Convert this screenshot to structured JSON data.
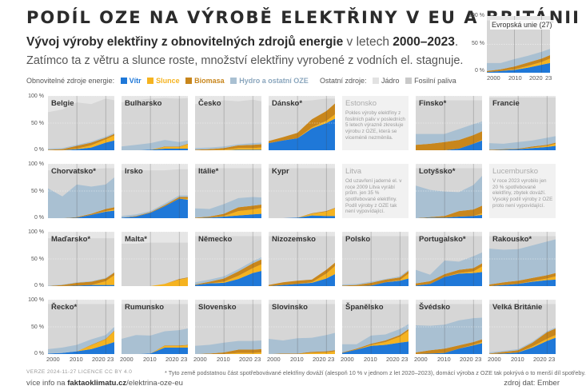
{
  "header": {
    "title": "PODÍL OZE NA VÝROBĚ ELEKTŘINY V EU A BRITÁNII",
    "subtitle_bold": "Vývoj výroby elektřiny z obnovitelných zdrojů energie",
    "subtitle_mid": " v letech ",
    "subtitle_years": "2000–2023",
    "subtitle_end": ".",
    "subtitle2": "Zatímco ta z větru a slunce roste, množství elektřiny vyrobené z vodních el. stagnuje."
  },
  "legend": {
    "renewables_label": "Obnovitelné zdroje energie:",
    "other_label": "Ostatní zdroje:",
    "items": [
      "Vítr",
      "Slunce",
      "Biomasa",
      "Hydro a ostatní OZE",
      "Jádro",
      "Fosilní paliva"
    ]
  },
  "colors": {
    "wind": "#1f78d8",
    "solar": "#f5b320",
    "biomass": "#c8861c",
    "hydro": "#a9c0d2",
    "nuclear": "#e2e2e2",
    "fossil": "#c9c9c9",
    "panel_bg": "#e6e6e6",
    "missing_bg": "#f1f1f1"
  },
  "axis": {
    "y_ticks": [
      "100 %",
      "50 %",
      "0 %"
    ],
    "x_ticks": [
      "2000",
      "2010",
      "2020",
      "23"
    ]
  },
  "eu": {
    "name": "Evropská unie (27)"
  },
  "notes": {
    "estonia": "Pokles výroby elektřiny z fosilních paliv v posledních 5 letech výrazně zkresluje výrobu z OZE, která se víceméně nezměnila.",
    "lithuania": "Od uzavření jaderné el. v roce 2009 Litva vyrábí prům. jen 35 % spotřebované elektřiny. Podíl výroby z OZE tak není vypovídající.",
    "luxembourg": "V roce 2023 vyrobilo jen 20 % spotřebované elektřiny, zbytek dováží. Vysoký podíl výroby z OZE proto není vypovídající."
  },
  "footer": {
    "footnote": "* Tyto země podstatnou část spotřebovávané elektřiny dováží (alespoň 10 % v jednom z let 2020–2023), domácí výroba z OZE tak pokrývá o to menší díl spotřeby.",
    "version": "VERZE 2024-11-27   LICENCE CC BY 4.0",
    "more_prefix": "více info na ",
    "more_domain": "faktaoklimatu.cz",
    "more_path": "/elektrina-oze-eu",
    "source": "zdroj dat: Ember"
  },
  "chart_data": {
    "type": "area",
    "stacked": true,
    "x": [
      2000,
      2005,
      2010,
      2015,
      2020,
      2023
    ],
    "ylim": [
      0,
      100
    ],
    "yunit": "%",
    "series_order": [
      "Vítr",
      "Slunce",
      "Biomasa",
      "Hydro a ostatní OZE"
    ],
    "countries": [
      {
        "name": "Belgie",
        "wind": [
          0,
          0,
          2,
          5,
          14,
          18
        ],
        "solar": [
          0,
          0,
          1,
          4,
          6,
          9
        ],
        "biomass": [
          1,
          2,
          5,
          5,
          3,
          3
        ],
        "hydro": [
          2,
          2,
          2,
          2,
          2,
          2
        ],
        "total": [
          70,
          75,
          88,
          85,
          95,
          92
        ]
      },
      {
        "name": "Bulharsko",
        "wind": [
          0,
          0,
          1,
          3,
          3,
          3
        ],
        "solar": [
          0,
          0,
          0,
          3,
          3,
          8
        ],
        "biomass": [
          0,
          0,
          0,
          1,
          1,
          1
        ],
        "hydro": [
          7,
          10,
          12,
          12,
          8,
          6
        ],
        "total": [
          88,
          92,
          95,
          96,
          95,
          96
        ]
      },
      {
        "name": "Česko",
        "wind": [
          0,
          0,
          0,
          1,
          1,
          1
        ],
        "solar": [
          0,
          0,
          1,
          3,
          3,
          4
        ],
        "biomass": [
          1,
          2,
          3,
          5,
          6,
          6
        ],
        "hydro": [
          3,
          3,
          3,
          2,
          3,
          3
        ],
        "total": [
          85,
          88,
          92,
          90,
          93,
          90
        ]
      },
      {
        "name": "Dánsko*",
        "wind": [
          13,
          18,
          22,
          40,
          50,
          58
        ],
        "solar": [
          0,
          0,
          0,
          2,
          4,
          8
        ],
        "biomass": [
          4,
          6,
          10,
          15,
          18,
          20
        ],
        "hydro": [
          0,
          0,
          0,
          0,
          0,
          0
        ],
        "total": [
          82,
          85,
          90,
          92,
          95,
          95
        ]
      },
      {
        "name": "Estonsko",
        "missing": true,
        "note": "estonia"
      },
      {
        "name": "Finsko*",
        "wind": [
          0,
          0,
          0,
          3,
          12,
          18
        ],
        "solar": [
          0,
          0,
          0,
          0,
          0,
          1
        ],
        "biomass": [
          10,
          12,
          15,
          16,
          16,
          16
        ],
        "hydro": [
          20,
          18,
          15,
          20,
          20,
          18
        ],
        "total": [
          92,
          92,
          92,
          92,
          92,
          92
        ]
      },
      {
        "name": "Francie",
        "wind": [
          0,
          1,
          2,
          4,
          6,
          8
        ],
        "solar": [
          0,
          0,
          0,
          1,
          2,
          4
        ],
        "biomass": [
          1,
          1,
          1,
          2,
          2,
          2
        ],
        "hydro": [
          12,
          10,
          12,
          11,
          13,
          12
        ],
        "total": [
          97,
          97,
          97,
          97,
          97,
          97
        ]
      },
      {
        "name": "Chorvatsko*",
        "wind": [
          0,
          0,
          1,
          6,
          12,
          14
        ],
        "solar": [
          0,
          0,
          0,
          0,
          1,
          2
        ],
        "biomass": [
          0,
          0,
          1,
          2,
          4,
          4
        ],
        "hydro": [
          55,
          40,
          60,
          50,
          45,
          55
        ],
        "total": [
          88,
          88,
          92,
          90,
          92,
          92
        ]
      },
      {
        "name": "Irsko",
        "wind": [
          1,
          3,
          10,
          22,
          36,
          34
        ],
        "solar": [
          0,
          0,
          0,
          0,
          0,
          2
        ],
        "biomass": [
          0,
          1,
          1,
          2,
          3,
          3
        ],
        "hydro": [
          3,
          3,
          2,
          3,
          3,
          3
        ],
        "total": [
          88,
          88,
          88,
          88,
          90,
          90
        ]
      },
      {
        "name": "Itálie*",
        "wind": [
          0,
          1,
          3,
          5,
          7,
          8
        ],
        "solar": [
          0,
          0,
          1,
          8,
          9,
          11
        ],
        "biomass": [
          1,
          2,
          4,
          7,
          7,
          6
        ],
        "hydro": [
          17,
          14,
          18,
          17,
          16,
          13
        ],
        "total": [
          92,
          92,
          92,
          92,
          92,
          92
        ]
      },
      {
        "name": "Kypr",
        "wind": [
          0,
          0,
          1,
          5,
          4,
          4
        ],
        "solar": [
          0,
          0,
          0,
          3,
          8,
          14
        ],
        "biomass": [
          0,
          0,
          0,
          1,
          1,
          1
        ],
        "hydro": [
          0,
          0,
          0,
          0,
          0,
          0
        ],
        "total": [
          92,
          92,
          92,
          92,
          92,
          92
        ]
      },
      {
        "name": "Litva",
        "missing": true,
        "note": "lithuania"
      },
      {
        "name": "Lotyšsko*",
        "wind": [
          0,
          1,
          1,
          3,
          4,
          6
        ],
        "solar": [
          0,
          0,
          0,
          0,
          0,
          3
        ],
        "biomass": [
          0,
          1,
          3,
          10,
          12,
          14
        ],
        "hydro": [
          60,
          50,
          45,
          35,
          45,
          55
        ],
        "total": [
          92,
          92,
          92,
          92,
          92,
          92
        ]
      },
      {
        "name": "Lucembursko",
        "missing": true,
        "note": "luxembourg"
      },
      {
        "name": "Maďarsko*",
        "wind": [
          0,
          0,
          1,
          2,
          2,
          2
        ],
        "solar": [
          0,
          0,
          0,
          0,
          7,
          18
        ],
        "biomass": [
          0,
          2,
          5,
          6,
          5,
          5
        ],
        "hydro": [
          1,
          1,
          1,
          1,
          1,
          1
        ],
        "total": [
          88,
          88,
          88,
          88,
          88,
          88
        ]
      },
      {
        "name": "Malta*",
        "wind": [
          0,
          0,
          0,
          0,
          0,
          0
        ],
        "solar": [
          0,
          0,
          0,
          4,
          12,
          15
        ],
        "biomass": [
          0,
          0,
          0,
          0,
          1,
          1
        ],
        "hydro": [
          0,
          0,
          0,
          0,
          0,
          0
        ],
        "total": [
          78,
          78,
          80,
          80,
          80,
          80
        ]
      },
      {
        "name": "Německo",
        "wind": [
          2,
          5,
          6,
          13,
          24,
          28
        ],
        "solar": [
          0,
          0,
          2,
          6,
          9,
          12
        ],
        "biomass": [
          1,
          3,
          6,
          8,
          9,
          9
        ],
        "hydro": [
          4,
          4,
          4,
          4,
          4,
          4
        ],
        "total": [
          92,
          92,
          92,
          92,
          92,
          92
        ]
      },
      {
        "name": "Nizozemsko",
        "wind": [
          0,
          2,
          4,
          6,
          14,
          22
        ],
        "solar": [
          0,
          0,
          0,
          1,
          9,
          15
        ],
        "biomass": [
          2,
          5,
          6,
          5,
          7,
          6
        ],
        "hydro": [
          0,
          0,
          0,
          0,
          0,
          0
        ],
        "total": [
          92,
          92,
          92,
          92,
          92,
          92
        ]
      },
      {
        "name": "Polsko",
        "wind": [
          0,
          0,
          1,
          7,
          10,
          14
        ],
        "solar": [
          0,
          0,
          0,
          0,
          1,
          9
        ],
        "biomass": [
          1,
          2,
          5,
          5,
          5,
          5
        ],
        "hydro": [
          2,
          2,
          2,
          1,
          2,
          2
        ],
        "total": [
          92,
          92,
          92,
          92,
          92,
          92
        ]
      },
      {
        "name": "Portugalsko*",
        "wind": [
          1,
          4,
          17,
          23,
          24,
          26
        ],
        "solar": [
          0,
          0,
          0,
          1,
          3,
          10
        ],
        "biomass": [
          4,
          5,
          5,
          6,
          6,
          6
        ],
        "hydro": [
          25,
          12,
          25,
          15,
          22,
          20
        ],
        "total": [
          92,
          92,
          92,
          92,
          92,
          92
        ]
      },
      {
        "name": "Rakousko*",
        "wind": [
          0,
          2,
          4,
          8,
          11,
          12
        ],
        "solar": [
          0,
          0,
          0,
          1,
          3,
          6
        ],
        "biomass": [
          3,
          5,
          6,
          6,
          6,
          6
        ],
        "hydro": [
          66,
          60,
          58,
          60,
          62,
          62
        ],
        "total": [
          92,
          92,
          92,
          92,
          92,
          92
        ]
      },
      {
        "name": "Řecko*",
        "wind": [
          1,
          2,
          5,
          9,
          17,
          22
        ],
        "solar": [
          0,
          0,
          0,
          7,
          10,
          20
        ],
        "biomass": [
          0,
          0,
          0,
          1,
          1,
          1
        ],
        "hydro": [
          8,
          10,
          12,
          10,
          7,
          7
        ],
        "total": [
          92,
          92,
          92,
          92,
          92,
          92
        ]
      },
      {
        "name": "Rumunsko",
        "wind": [
          0,
          0,
          1,
          12,
          12,
          12
        ],
        "solar": [
          0,
          0,
          0,
          3,
          3,
          4
        ],
        "biomass": [
          0,
          0,
          0,
          1,
          1,
          1
        ],
        "hydro": [
          28,
          35,
          33,
          26,
          28,
          30
        ],
        "total": [
          92,
          92,
          92,
          92,
          92,
          92
        ]
      },
      {
        "name": "Slovensko",
        "wind": [
          0,
          0,
          0,
          0,
          0,
          0
        ],
        "solar": [
          0,
          0,
          0,
          2,
          2,
          3
        ],
        "biomass": [
          0,
          1,
          3,
          6,
          6,
          6
        ],
        "hydro": [
          15,
          16,
          18,
          16,
          16,
          16
        ],
        "total": [
          92,
          92,
          92,
          92,
          92,
          92
        ]
      },
      {
        "name": "Slovinsko",
        "wind": [
          0,
          0,
          0,
          0,
          0,
          0
        ],
        "solar": [
          0,
          0,
          0,
          2,
          3,
          5
        ],
        "biomass": [
          0,
          1,
          1,
          2,
          2,
          2
        ],
        "hydro": [
          28,
          24,
          28,
          26,
          30,
          32
        ],
        "total": [
          92,
          92,
          92,
          92,
          92,
          92
        ]
      },
      {
        "name": "Španělsko",
        "wind": [
          2,
          8,
          15,
          17,
          21,
          23
        ],
        "solar": [
          0,
          0,
          2,
          5,
          11,
          20
        ],
        "biomass": [
          1,
          2,
          2,
          3,
          3,
          3
        ],
        "hydro": [
          15,
          8,
          15,
          11,
          11,
          9
        ],
        "total": [
          92,
          92,
          92,
          92,
          92,
          92
        ]
      },
      {
        "name": "Švédsko",
        "wind": [
          0,
          1,
          2,
          10,
          16,
          20
        ],
        "solar": [
          0,
          0,
          0,
          0,
          1,
          2
        ],
        "biomass": [
          3,
          6,
          8,
          6,
          5,
          5
        ],
        "hydro": [
          50,
          45,
          44,
          46,
          44,
          40
        ],
        "total": [
          92,
          92,
          92,
          92,
          92,
          92
        ]
      },
      {
        "name": "Velká Británie",
        "wind": [
          0,
          1,
          3,
          12,
          24,
          30
        ],
        "solar": [
          0,
          0,
          0,
          2,
          4,
          5
        ],
        "biomass": [
          1,
          3,
          4,
          7,
          12,
          12
        ],
        "hydro": [
          2,
          2,
          2,
          2,
          2,
          2
        ],
        "total": [
          92,
          92,
          92,
          92,
          92,
          92
        ]
      }
    ],
    "eu27": {
      "wind": [
        1,
        3,
        5,
        9,
        14,
        17
      ],
      "solar": [
        0,
        0,
        1,
        3,
        5,
        8
      ],
      "biomass": [
        2,
        3,
        5,
        6,
        6,
        6
      ],
      "hydro": [
        14,
        11,
        13,
        12,
        12,
        11
      ],
      "total": [
        92,
        92,
        92,
        92,
        92,
        92
      ]
    }
  }
}
